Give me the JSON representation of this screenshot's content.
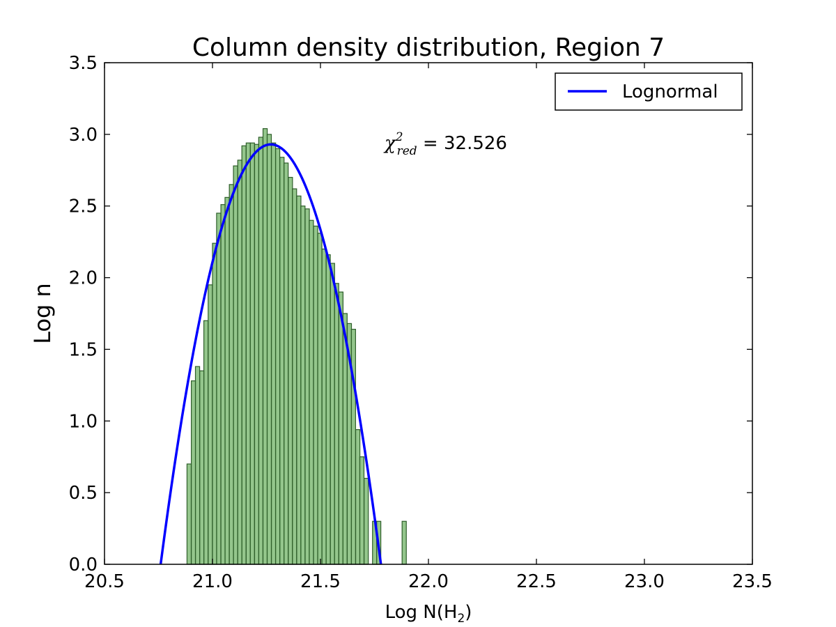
{
  "chart_data": {
    "type": "bar",
    "title": "Column density distribution, Region 7",
    "xlabel": {
      "text": "Log N(H",
      "sub": "2",
      "close": ")"
    },
    "ylabel": "Log n",
    "xlim": [
      20.5,
      23.5
    ],
    "ylim": [
      0.0,
      3.5
    ],
    "xticks": [
      20.5,
      21.0,
      21.5,
      22.0,
      22.5,
      23.0,
      23.5
    ],
    "xtick_labels": [
      "20.5",
      "21.0",
      "21.5",
      "22.0",
      "22.5",
      "23.0",
      "23.5"
    ],
    "yticks": [
      0.0,
      0.5,
      1.0,
      1.5,
      2.0,
      2.5,
      3.0,
      3.5
    ],
    "ytick_labels": [
      "0.0",
      "0.5",
      "1.0",
      "1.5",
      "2.0",
      "2.5",
      "3.0",
      "3.5"
    ],
    "grid": false,
    "legend": {
      "placement": "top-right",
      "entries": [
        {
          "label": "Lognormal"
        }
      ]
    },
    "annotation": {
      "symbol": "χ",
      "sup": "2",
      "sub": "red",
      "text": " = 32.526"
    },
    "histogram": {
      "name": "",
      "color": "#5aa84f",
      "edge_color": "#2e5e2a",
      "bin_width": 0.0195,
      "bin_left_edges": [
        20.882,
        20.902,
        20.921,
        20.941,
        20.96,
        20.98,
        21.0,
        21.019,
        21.039,
        21.058,
        21.078,
        21.097,
        21.117,
        21.136,
        21.156,
        21.175,
        21.195,
        21.214,
        21.234,
        21.253,
        21.273,
        21.292,
        21.312,
        21.331,
        21.351,
        21.37,
        21.39,
        21.409,
        21.429,
        21.448,
        21.468,
        21.487,
        21.507,
        21.526,
        21.546,
        21.565,
        21.585,
        21.604,
        21.624,
        21.643,
        21.663,
        21.682,
        21.702,
        21.721,
        21.741,
        21.76,
        21.78,
        21.799,
        21.819,
        21.838,
        21.858,
        21.878,
        21.897
      ],
      "values": [
        0.7,
        1.28,
        1.38,
        1.35,
        1.7,
        1.95,
        2.24,
        2.45,
        2.51,
        2.56,
        2.65,
        2.78,
        2.82,
        2.92,
        2.94,
        2.94,
        2.93,
        2.98,
        3.04,
        3.0,
        2.94,
        2.9,
        2.84,
        2.8,
        2.7,
        2.62,
        2.57,
        2.5,
        2.48,
        2.4,
        2.36,
        2.31,
        2.2,
        2.16,
        2.1,
        1.96,
        1.9,
        1.75,
        1.68,
        1.64,
        0.94,
        0.75,
        0.6,
        0.0,
        0.3,
        0.3,
        0.0,
        0.0,
        0.0,
        0.0,
        0.0,
        0.3,
        0.0
      ]
    },
    "series": [
      {
        "type": "line",
        "label": "Lognormal",
        "color": "#0000ff",
        "peak_x": 21.27,
        "peak_y": 2.93,
        "zero_left": 20.76,
        "zero_right": 21.78
      }
    ]
  }
}
